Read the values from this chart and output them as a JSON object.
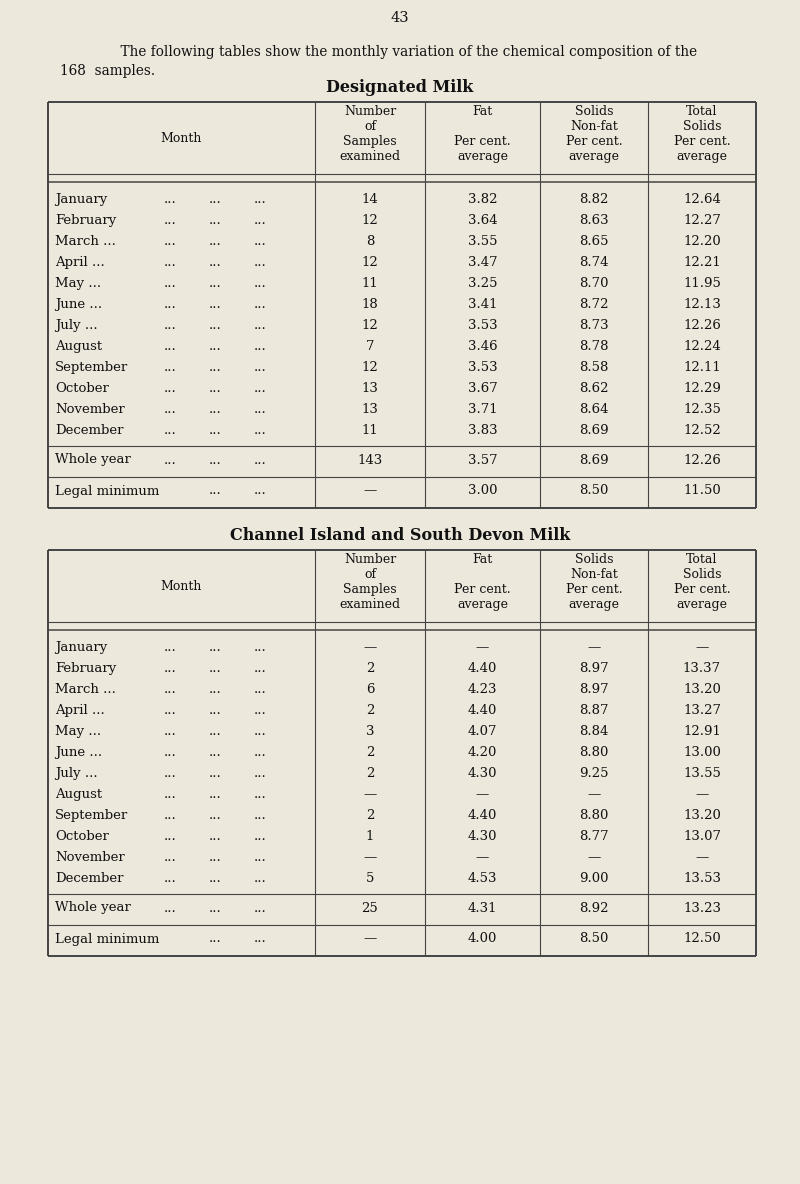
{
  "page_number": "43",
  "intro_line1": "    The following tables show the monthly variation of the chemical composition of the",
  "intro_line2": "168  samples.",
  "table1_title": "Designated Milk",
  "table2_title": "Channel Island and South Devon Milk",
  "table1_rows": [
    [
      "January",
      "...",
      "...",
      "...",
      "14",
      "3.82",
      "8.82",
      "12.64"
    ],
    [
      "February",
      "...",
      "...",
      "...",
      "12",
      "3.64",
      "8.63",
      "12.27"
    ],
    [
      "March",
      "...",
      "...",
      "...",
      "8",
      "3.55",
      "8.65",
      "12.20"
    ],
    [
      "April",
      "...",
      "...",
      "...",
      "12",
      "3.47",
      "8.74",
      "12.21"
    ],
    [
      "May",
      "...",
      "...",
      "...",
      "11",
      "3.25",
      "8.70",
      "11.95"
    ],
    [
      "June",
      "...",
      "...",
      "...",
      "18",
      "3.41",
      "8.72",
      "12.13"
    ],
    [
      "July",
      "...",
      "...",
      "...",
      "12",
      "3.53",
      "8.73",
      "12.26"
    ],
    [
      "August",
      "...",
      "...",
      "...",
      "7",
      "3.46",
      "8.78",
      "12.24"
    ],
    [
      "September",
      "...",
      "...",
      "...",
      "12",
      "3.53",
      "8.58",
      "12.11"
    ],
    [
      "October",
      "...",
      "...",
      "...",
      "13",
      "3.67",
      "8.62",
      "12.29"
    ],
    [
      "November",
      "...",
      "...",
      "...",
      "13",
      "3.71",
      "8.64",
      "12.35"
    ],
    [
      "December",
      "...",
      "...",
      "...",
      "11",
      "3.83",
      "8.69",
      "12.52"
    ]
  ],
  "table1_month_dots": [
    [
      "January",
      "...",
      "...",
      "..."
    ],
    [
      "February",
      "...",
      "...",
      "..."
    ],
    [
      "March ...",
      "...",
      "...",
      "..."
    ],
    [
      "April ...",
      "...",
      "...",
      "..."
    ],
    [
      "May ...",
      "...",
      "...",
      "..."
    ],
    [
      "June ...",
      "...",
      "...",
      "..."
    ],
    [
      "July ...",
      "...",
      "...",
      "..."
    ],
    [
      "August",
      "...",
      "...",
      "..."
    ],
    [
      "September",
      "...",
      "...",
      "..."
    ],
    [
      "October",
      "...",
      "...",
      "..."
    ],
    [
      "November",
      "...",
      "...",
      "..."
    ],
    [
      "December",
      "...",
      "...",
      "..."
    ]
  ],
  "table1_summary": [
    "Whole year",
    "...",
    "...",
    "...",
    "143",
    "3.57",
    "8.69",
    "12.26"
  ],
  "table1_legal": [
    "Legal minimum",
    "",
    "...",
    "...",
    "—",
    "3.00",
    "8.50",
    "11.50"
  ],
  "table2_rows": [
    [
      "January",
      "...",
      "...",
      "...",
      "—",
      "—",
      "—",
      "—"
    ],
    [
      "February",
      "...",
      "...",
      "...",
      "2",
      "4.40",
      "8.97",
      "13.37"
    ],
    [
      "March",
      "...",
      "...",
      "...",
      "6",
      "4.23",
      "8.97",
      "13.20"
    ],
    [
      "April",
      "...",
      "...",
      "...",
      "2",
      "4.40",
      "8.87",
      "13.27"
    ],
    [
      "May",
      "...",
      "...",
      "...",
      "3",
      "4.07",
      "8.84",
      "12.91"
    ],
    [
      "June",
      "...",
      "...",
      "...",
      "2",
      "4.20",
      "8.80",
      "13.00"
    ],
    [
      "July",
      "...",
      "...",
      "...",
      "2",
      "4.30",
      "9.25",
      "13.55"
    ],
    [
      "August",
      "...",
      "...",
      "...",
      "—",
      "—",
      "—",
      "—"
    ],
    [
      "September",
      "...",
      "...",
      "...",
      "2",
      "4.40",
      "8.80",
      "13.20"
    ],
    [
      "October",
      "...",
      "...",
      "...",
      "1",
      "4.30",
      "8.77",
      "13.07"
    ],
    [
      "November",
      "...",
      "...",
      "...",
      "—",
      "—",
      "—",
      "—"
    ],
    [
      "December",
      "...",
      "...",
      "...",
      "5",
      "4.53",
      "9.00",
      "13.53"
    ]
  ],
  "table2_month_dots": [
    [
      "January",
      "...",
      "...",
      "..."
    ],
    [
      "February",
      "...",
      "...",
      "..."
    ],
    [
      "March ...",
      "...",
      "...",
      "..."
    ],
    [
      "April ...",
      "...",
      "...",
      "..."
    ],
    [
      "May ...",
      "...",
      "...",
      "..."
    ],
    [
      "June ...",
      "...",
      "...",
      "..."
    ],
    [
      "July ...",
      "...",
      "...",
      "..."
    ],
    [
      "August",
      "...",
      "...",
      "..."
    ],
    [
      "September",
      "...",
      "...",
      "..."
    ],
    [
      "October",
      "...",
      "...",
      "..."
    ],
    [
      "November",
      "...",
      "...",
      "..."
    ],
    [
      "December",
      "...",
      "...",
      "..."
    ]
  ],
  "table2_summary": [
    "Whole year",
    "...",
    "...",
    "...",
    "25",
    "4.31",
    "8.92",
    "13.23"
  ],
  "table2_legal": [
    "Legal minimum",
    "",
    "...",
    "...",
    "—",
    "4.00",
    "8.50",
    "12.50"
  ],
  "bg_color": "#ede8dc",
  "line_color": "#444444",
  "text_color": "#111111",
  "font_size": 9.5,
  "header_font_size": 9.0,
  "title_font_size": 11.5,
  "page_num_font_size": 10.5
}
